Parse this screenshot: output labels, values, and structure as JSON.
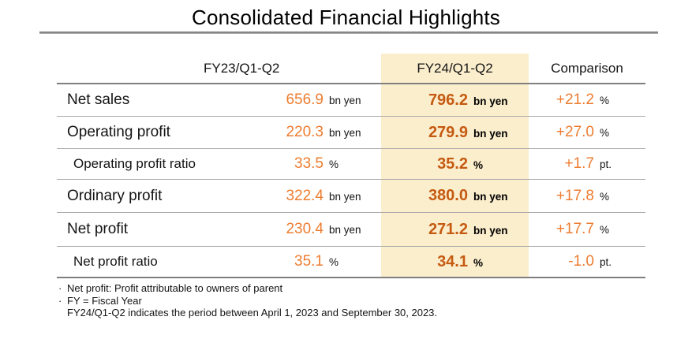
{
  "title": "Consolidated Financial Highlights",
  "table": {
    "headers": {
      "fy23": "FY23/Q1-Q2",
      "fy24": "FY24/Q1-Q2",
      "comparison": "Comparison"
    },
    "rows": [
      {
        "label": "Net sales",
        "fy23": "656.9",
        "fy23_unit": "bn yen",
        "fy24": "796.2",
        "fy24_unit": "bn yen",
        "comp": "+21.2",
        "comp_unit": "%"
      },
      {
        "label": "Operating profit",
        "fy23": "220.3",
        "fy23_unit": "bn yen",
        "fy24": "279.9",
        "fy24_unit": "bn yen",
        "comp": "+27.0",
        "comp_unit": "%"
      },
      {
        "label": "Operating profit ratio",
        "fy23": "33.5",
        "fy23_unit": "%",
        "fy24": "35.2",
        "fy24_unit": "%",
        "comp": "+1.7",
        "comp_unit": "pt."
      },
      {
        "label": "Ordinary profit",
        "fy23": "322.4",
        "fy23_unit": "bn yen",
        "fy24": "380.0",
        "fy24_unit": "bn yen",
        "comp": "+17.8",
        "comp_unit": "%"
      },
      {
        "label": "Net profit",
        "fy23": "230.4",
        "fy23_unit": "bn yen",
        "fy24": "271.2",
        "fy24_unit": "bn yen",
        "comp": "+17.7",
        "comp_unit": "%"
      },
      {
        "label": "Net profit ratio",
        "fy23": "35.1",
        "fy23_unit": "%",
        "fy24": "34.1",
        "fy24_unit": "%",
        "comp": "-1.0",
        "comp_unit": "pt."
      }
    ]
  },
  "footnotes": [
    {
      "bullet": "·",
      "text": "Net profit: Profit attributable to owners of parent"
    },
    {
      "bullet": "·",
      "text": "FY = Fiscal Year"
    },
    {
      "bullet": "",
      "text": "FY24/Q1-Q2 indicates the period between April 1, 2023 and September 30, 2023."
    }
  ],
  "colors": {
    "fy23_value": "#ED7D31",
    "fy24_value": "#C55A11",
    "comparison_value": "#ED7D31",
    "highlight_column_bg": "#FBEECD",
    "header_line": "#808080",
    "row_line": "#A9A9A9",
    "text": "#141414"
  }
}
